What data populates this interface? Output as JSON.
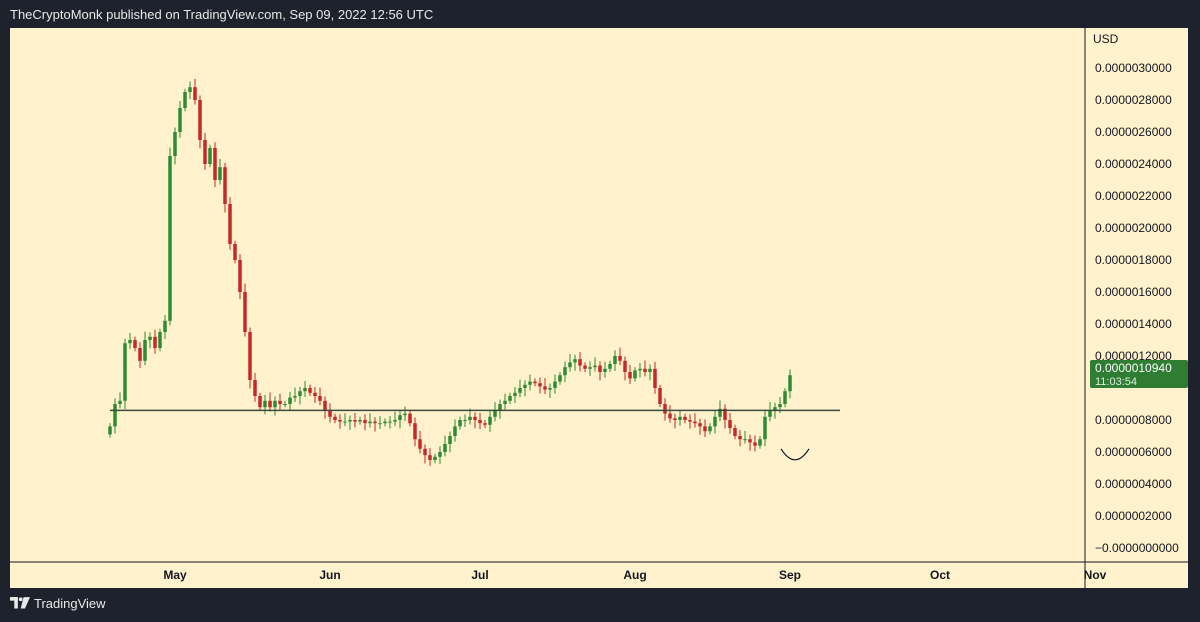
{
  "header": {
    "text": "TheCryptoMonk published on TradingView.com, Sep 09, 2022 12:56 UTC"
  },
  "footer": {
    "brand": "TradingView",
    "logo_icon": "tradingview-logo-icon"
  },
  "colors": {
    "background": "#fff2cd",
    "up": "#2e8b35",
    "down": "#c62828",
    "price_tag": "#2e7d32",
    "line": "#3c4a3c"
  },
  "chart_data": {
    "type": "candlestick",
    "currency": "USD",
    "y_ticks": [
      "0.0000030000",
      "0.0000028000",
      "0.0000026000",
      "0.0000024000",
      "0.0000022000",
      "0.0000020000",
      "0.0000018000",
      "0.0000016000",
      "0.0000014000",
      "0.0000012000",
      "0.0000008000",
      "0.0000006000",
      "0.0000004000",
      "0.0000002000",
      "−0.0000000000"
    ],
    "y_tick_values": [
      3.0,
      2.8,
      2.6,
      2.4,
      2.2,
      2.0,
      1.8,
      1.6,
      1.4,
      1.2,
      0.8,
      0.6,
      0.4,
      0.2,
      0.0
    ],
    "value_unit_note": "values below in units of 1e-6 USD",
    "ylim": [
      0.0,
      3.1
    ],
    "x_ticks": [
      "May",
      "Jun",
      "Jul",
      "Aug",
      "Sep",
      "Oct",
      "Nov"
    ],
    "x_tick_dates": [
      "2022-05-01",
      "2022-06-01",
      "2022-07-01",
      "2022-08-01",
      "2022-09-01",
      "2022-10-01",
      "2022-11-01"
    ],
    "xlim": [
      "2022-04-06",
      "2022-11-02"
    ],
    "last_price": {
      "value": "0.0000010940",
      "countdown": "11:03:54",
      "y": 1.094
    },
    "horizontal_line": {
      "y": 0.86,
      "from": "2022-04-18",
      "to": "2022-09-11"
    },
    "arc_annotation": {
      "center_date": "2022-09-02",
      "y": 0.62
    },
    "candles_start_date": "2022-04-18",
    "closes": [
      0.76,
      0.9,
      0.92,
      1.28,
      1.3,
      1.25,
      1.17,
      1.3,
      1.32,
      1.25,
      1.35,
      1.42,
      2.45,
      2.6,
      2.75,
      2.85,
      2.88,
      2.8,
      2.55,
      2.4,
      2.5,
      2.3,
      2.38,
      2.15,
      1.9,
      1.8,
      1.6,
      1.35,
      1.05,
      0.95,
      0.88,
      0.92,
      0.88,
      0.92,
      0.9,
      0.9,
      0.94,
      0.95,
      0.98,
      1.0,
      0.97,
      0.95,
      0.92,
      0.86,
      0.82,
      0.8,
      0.79,
      0.79,
      0.8,
      0.79,
      0.8,
      0.78,
      0.79,
      0.78,
      0.78,
      0.79,
      0.79,
      0.8,
      0.83,
      0.84,
      0.78,
      0.68,
      0.62,
      0.58,
      0.55,
      0.57,
      0.6,
      0.65,
      0.7,
      0.76,
      0.8,
      0.8,
      0.82,
      0.8,
      0.78,
      0.77,
      0.82,
      0.86,
      0.9,
      0.92,
      0.95,
      0.97,
      1.0,
      1.02,
      1.04,
      1.03,
      1.01,
      0.99,
      1.0,
      1.04,
      1.08,
      1.13,
      1.16,
      1.18,
      1.14,
      1.12,
      1.13,
      1.14,
      1.1,
      1.12,
      1.15,
      1.2,
      1.17,
      1.1,
      1.06,
      1.11,
      1.12,
      1.1,
      1.12,
      1.0,
      0.9,
      0.84,
      0.81,
      0.8,
      0.82,
      0.8,
      0.79,
      0.78,
      0.76,
      0.73,
      0.76,
      0.82,
      0.87,
      0.8,
      0.75,
      0.7,
      0.68,
      0.68,
      0.66,
      0.64,
      0.68,
      0.82,
      0.86,
      0.88,
      0.9,
      0.98,
      1.08
    ]
  }
}
